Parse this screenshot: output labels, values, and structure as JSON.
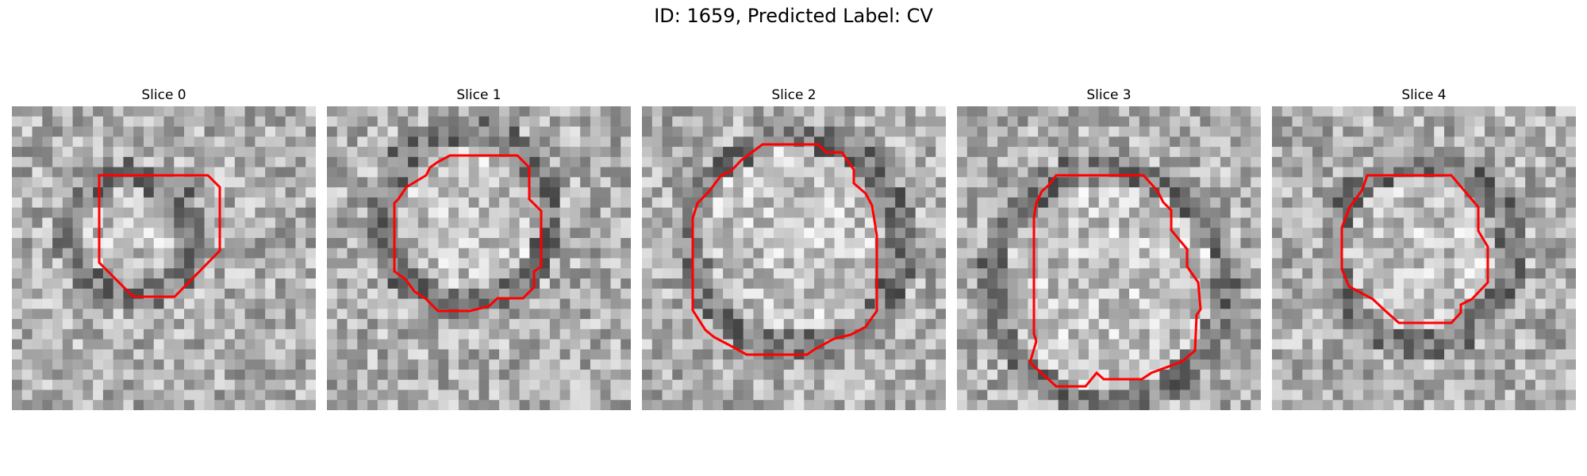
{
  "figure": {
    "title": "ID: 1659, Predicted Label: CV",
    "contour_color": "#ff0000"
  },
  "slices": [
    {
      "label": "Slice 0",
      "seed": 11
    },
    {
      "label": "Slice 1",
      "seed": 23
    },
    {
      "label": "Slice 2",
      "seed": 37
    },
    {
      "label": "Slice 3",
      "seed": 53
    },
    {
      "label": "Slice 4",
      "seed": 71
    }
  ]
}
